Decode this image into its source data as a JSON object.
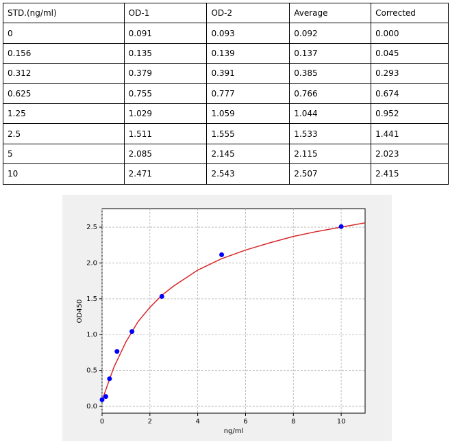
{
  "table": {
    "header": [
      "STD.(ng/ml)",
      "OD-1",
      "OD-2",
      "Average",
      "Corrected"
    ],
    "rows": [
      [
        "0",
        "0.091",
        "0.093",
        "0.092",
        "0.000"
      ],
      [
        "0.156",
        "0.135",
        "0.139",
        "0.137",
        "0.045"
      ],
      [
        "0.312",
        "0.379",
        "0.391",
        "0.385",
        "0.293"
      ],
      [
        "0.625",
        "0.755",
        "0.777",
        "0.766",
        "0.674"
      ],
      [
        "1.25",
        "1.029",
        "1.059",
        "1.044",
        "0.952"
      ],
      [
        "2.5",
        "1.511",
        "1.555",
        "1.533",
        "1.441"
      ],
      [
        "5",
        "2.085",
        "2.145",
        "2.115",
        "2.023"
      ],
      [
        "10",
        "2.471",
        "2.543",
        "2.507",
        "2.415"
      ]
    ]
  },
  "chart_data": {
    "type": "scatter",
    "x_label": "ng/ml",
    "y_label": "OD450",
    "xlim": [
      0,
      11
    ],
    "xticks": [
      0,
      2,
      4,
      6,
      8,
      10
    ],
    "ylim": [
      -0.095,
      2.758
    ],
    "yticks": [
      {
        "value": 0,
        "label": "0.0"
      },
      0.5,
      {
        "value": 1,
        "label": "1.0"
      },
      1.5,
      {
        "value": 2,
        "label": "2.0"
      },
      2.5
    ],
    "grid": true,
    "series": [
      {
        "type": "line",
        "color": "#d62728",
        "x": [
          0,
          0.25,
          0.5,
          1,
          1.5,
          2,
          2.5,
          3,
          4,
          5,
          6,
          7,
          8,
          9,
          10,
          11
        ],
        "values": [
          0.08,
          0.32,
          0.55,
          0.9,
          1.18,
          1.38,
          1.55,
          1.68,
          1.9,
          2.06,
          2.18,
          2.28,
          2.37,
          2.44,
          2.5,
          2.56
        ]
      },
      {
        "type": "scatter",
        "color": "#0000ff",
        "x": [
          0,
          0.156,
          0.312,
          0.625,
          1.25,
          2.5,
          5,
          10
        ],
        "values": [
          0.092,
          0.137,
          0.385,
          0.766,
          1.044,
          1.533,
          2.115,
          2.507
        ]
      }
    ]
  }
}
